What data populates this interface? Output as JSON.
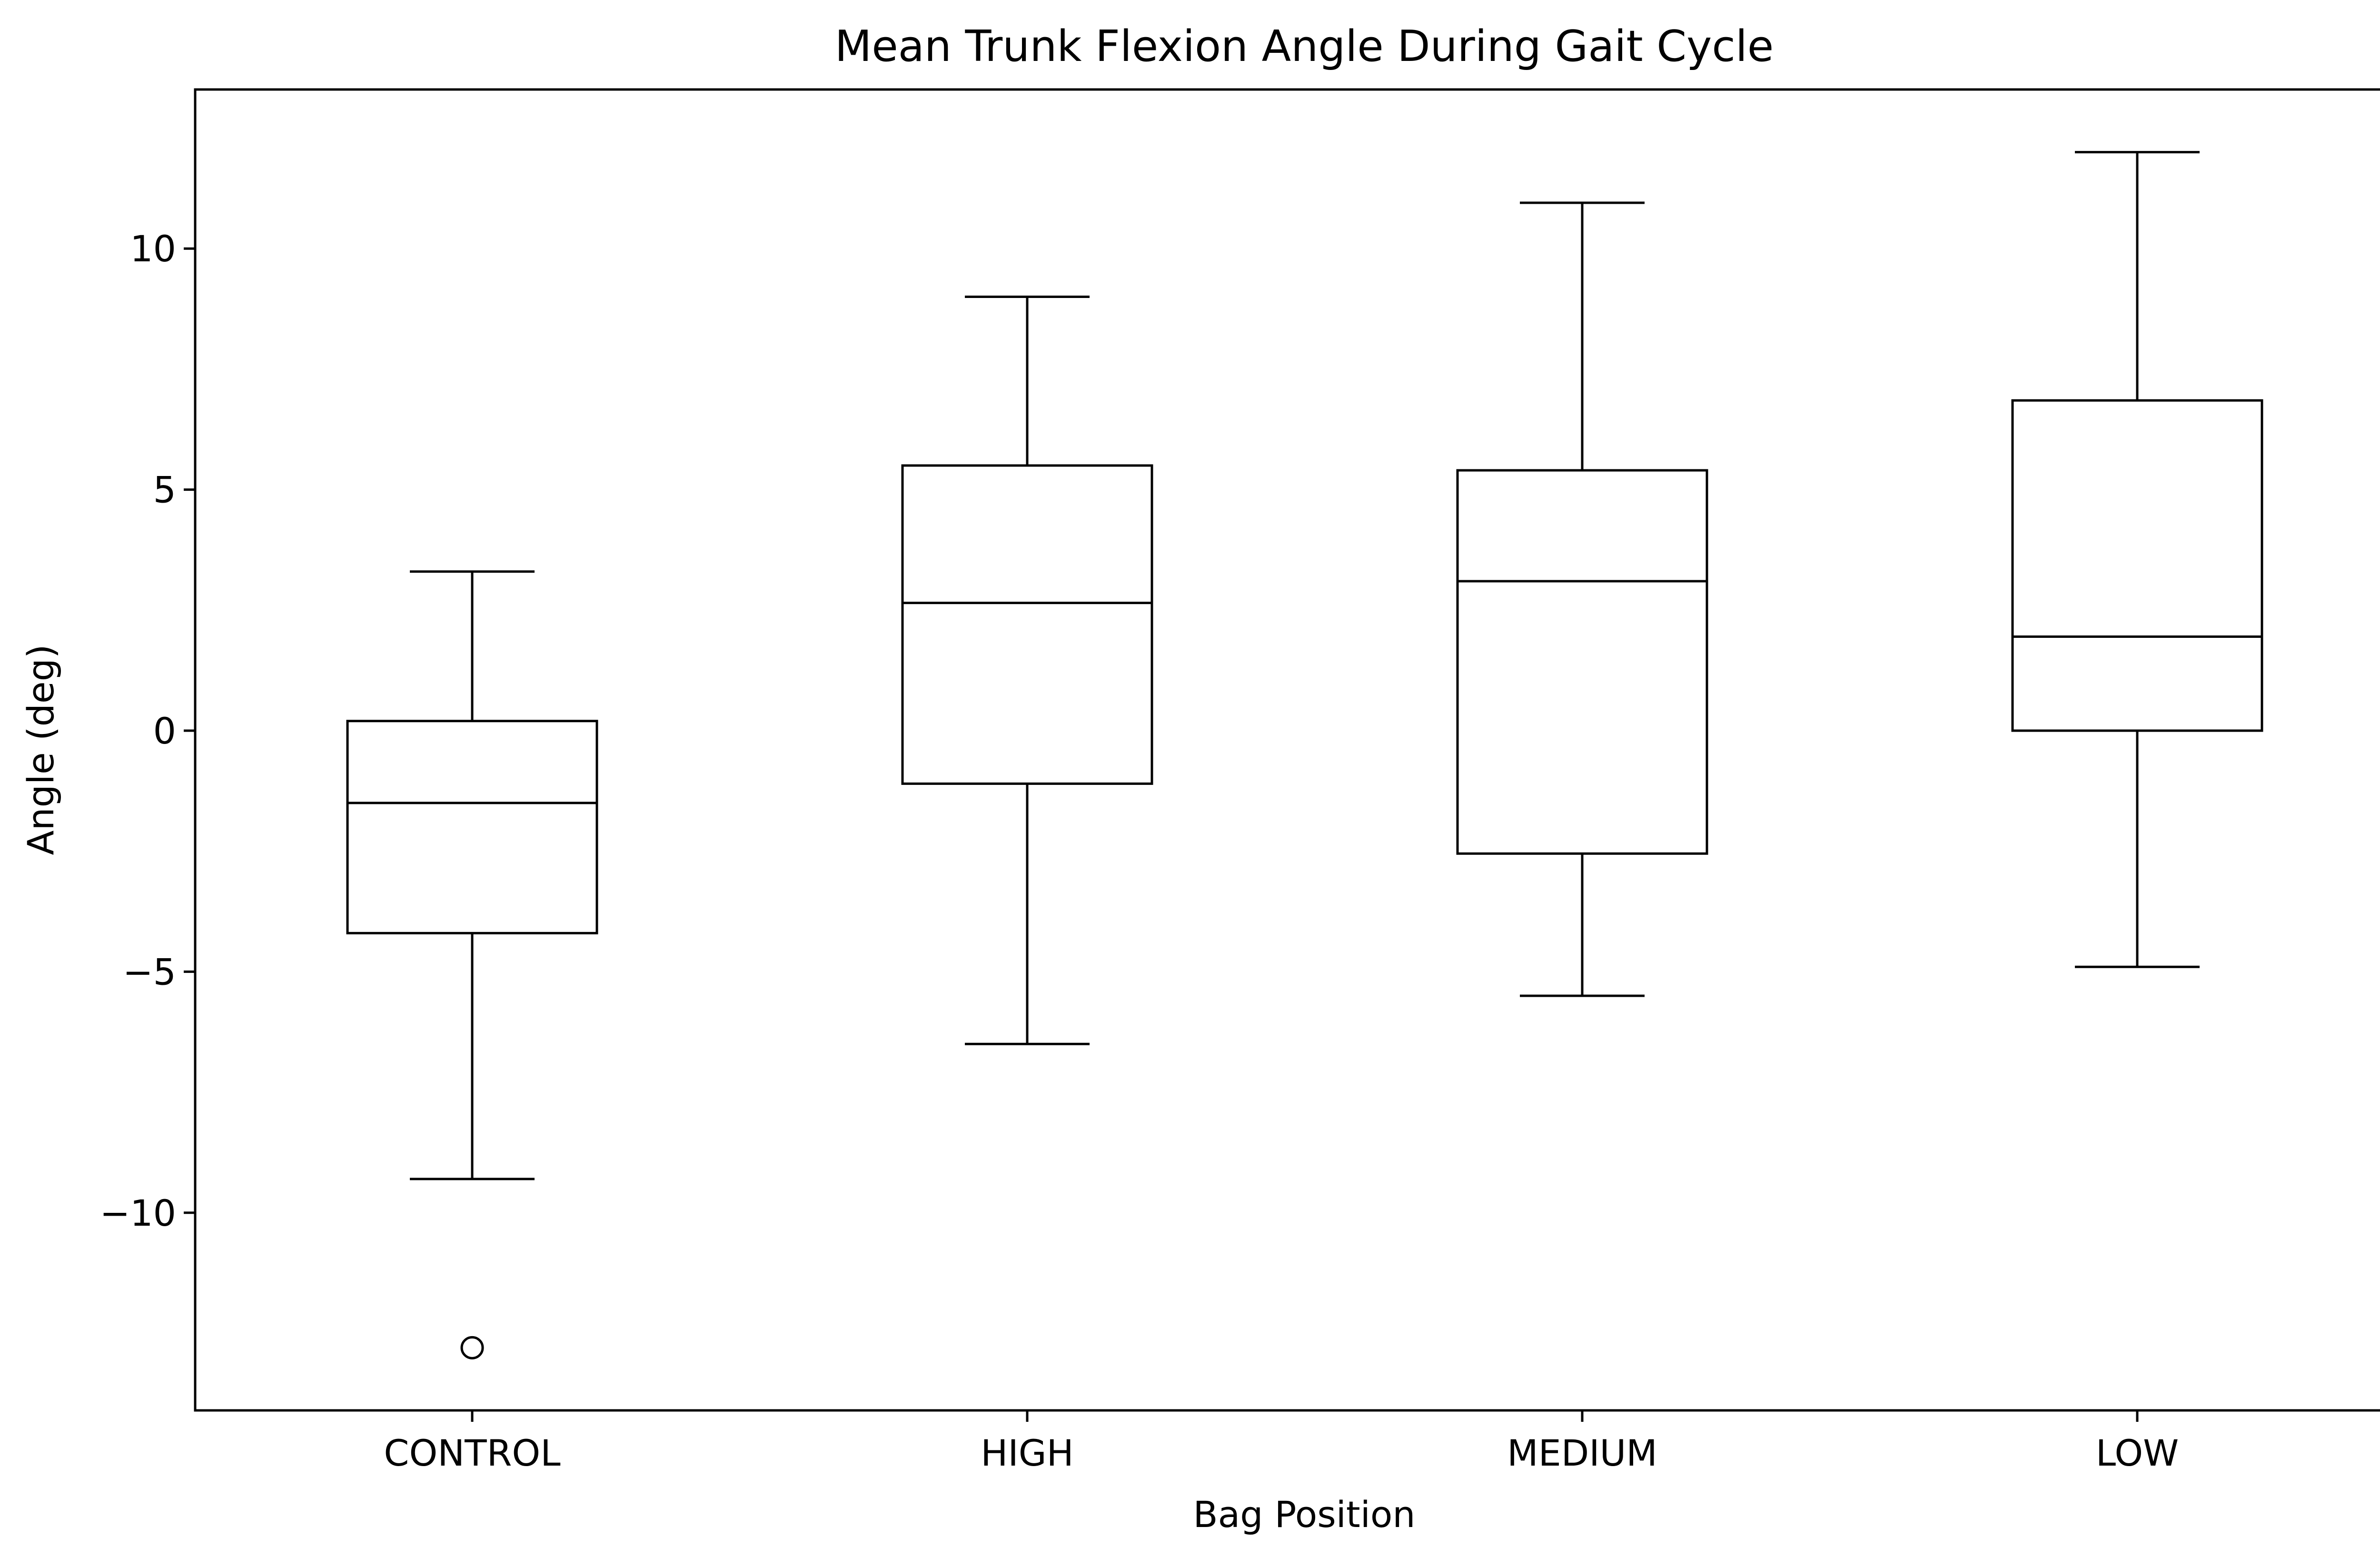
{
  "chart_data": {
    "type": "box",
    "title": "Mean Trunk Flexion Angle During Gait Cycle",
    "xlabel": "Bag Position",
    "ylabel": "Angle (deg)",
    "categories": [
      "CONTROL",
      "HIGH",
      "MEDIUM",
      "LOW"
    ],
    "boxes": [
      {
        "category": "CONTROL",
        "whisker_low": -9.3,
        "q1": -4.2,
        "median": -1.5,
        "q3": 0.2,
        "whisker_high": 3.3,
        "outliers": [
          -12.8
        ]
      },
      {
        "category": "HIGH",
        "whisker_low": -6.5,
        "q1": -1.1,
        "median": 2.65,
        "q3": 5.5,
        "whisker_high": 9.0,
        "outliers": []
      },
      {
        "category": "MEDIUM",
        "whisker_low": -5.5,
        "q1": -2.55,
        "median": 3.1,
        "q3": 5.4,
        "whisker_high": 10.95,
        "outliers": []
      },
      {
        "category": "LOW",
        "whisker_low": -4.9,
        "q1": 0.0,
        "median": 1.95,
        "q3": 6.85,
        "whisker_high": 12.0,
        "outliers": []
      }
    ],
    "yticks": [
      -10,
      -5,
      0,
      5,
      10
    ],
    "ytick_labels": [
      "−10",
      "−5",
      "0",
      "5",
      "10"
    ],
    "ylim": [
      -14.1,
      13.3
    ],
    "grid": false,
    "colors": {
      "box_edge": "#000000",
      "box_fill": "#ffffff",
      "axes": "#000000"
    }
  }
}
